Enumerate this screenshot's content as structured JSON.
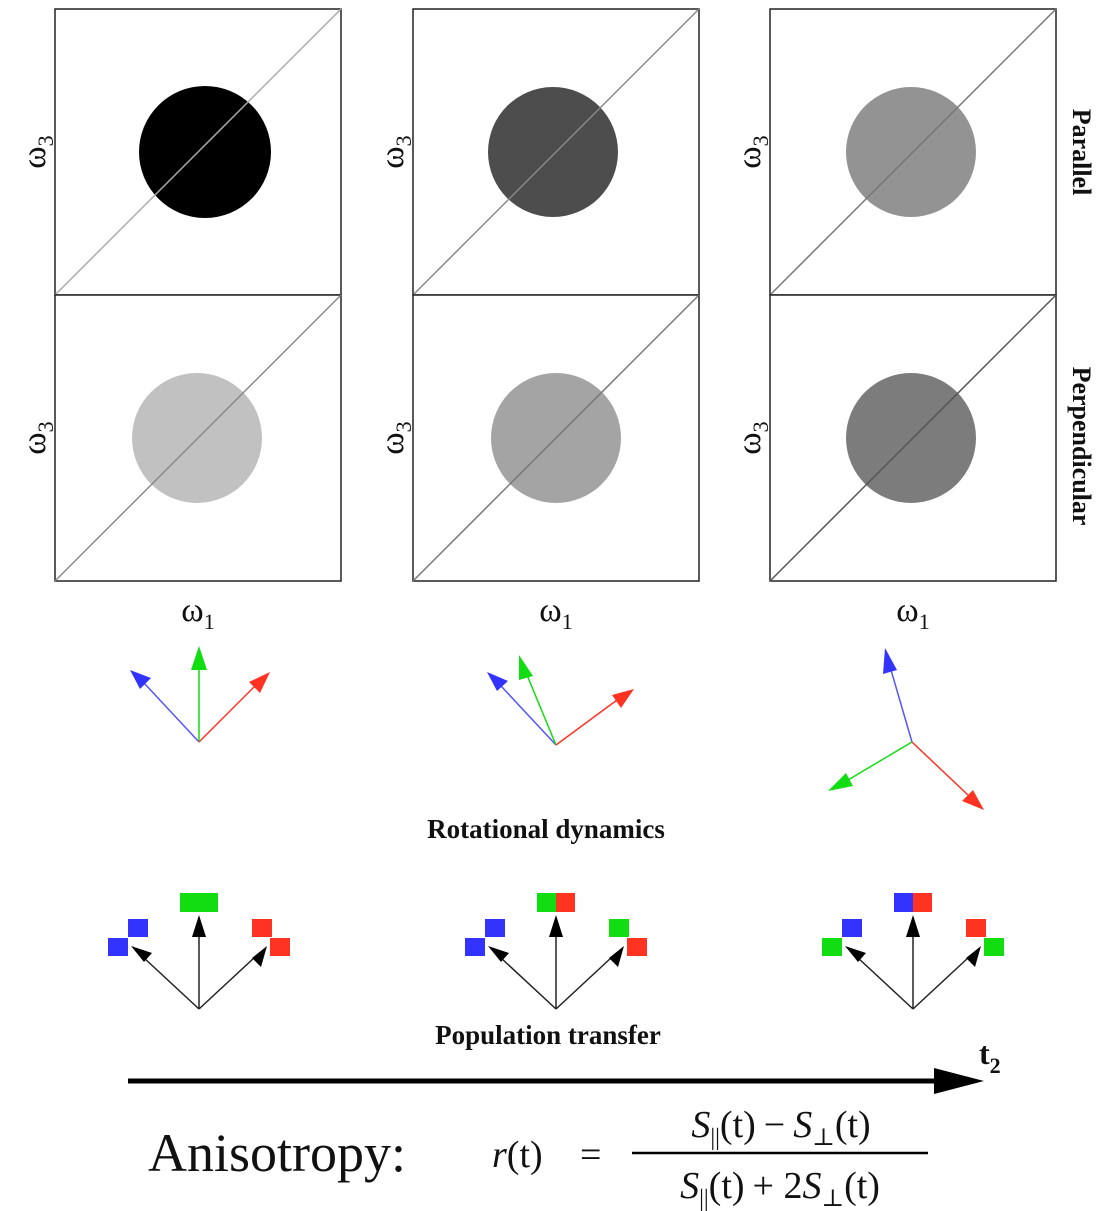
{
  "axes": {
    "omega3_symbol": "ω",
    "omega3_subscript": "3",
    "omega1_symbol": "ω",
    "omega1_subscript": "1"
  },
  "row_labels": {
    "parallel": "Parallel",
    "perpendicular": "Perpendicular"
  },
  "spot_shades": {
    "parallel": [
      "#000000",
      "#4d4d4d",
      "#939393"
    ],
    "perpendicular": [
      "#c1c1c1",
      "#a4a4a4",
      "#7c7c7c"
    ]
  },
  "arrow_colors": {
    "red": "#ff3322",
    "green": "#11dd11",
    "blue": "#3333ff",
    "black": "#000000"
  },
  "captions": {
    "rotational": "Rotational dynamics",
    "population": "Population transfer"
  },
  "time_axis": {
    "symbol": "t",
    "subscript": "2"
  },
  "formula": {
    "label": "Anisotropy:",
    "lhs_r": "r",
    "lhs_t": "(t)",
    "equals": "=",
    "num_S1": "S",
    "num_sub1": "||",
    "num_t1": "(t)",
    "num_minus": "−",
    "num_S2": "S",
    "num_sub2": "⊥",
    "num_t2": "(t)",
    "den_S1": "S",
    "den_sub1": "||",
    "den_t1": "(t)",
    "den_plus": "+ 2",
    "den_S2": "S",
    "den_sub2": "⊥",
    "den_t2": "(t)"
  }
}
